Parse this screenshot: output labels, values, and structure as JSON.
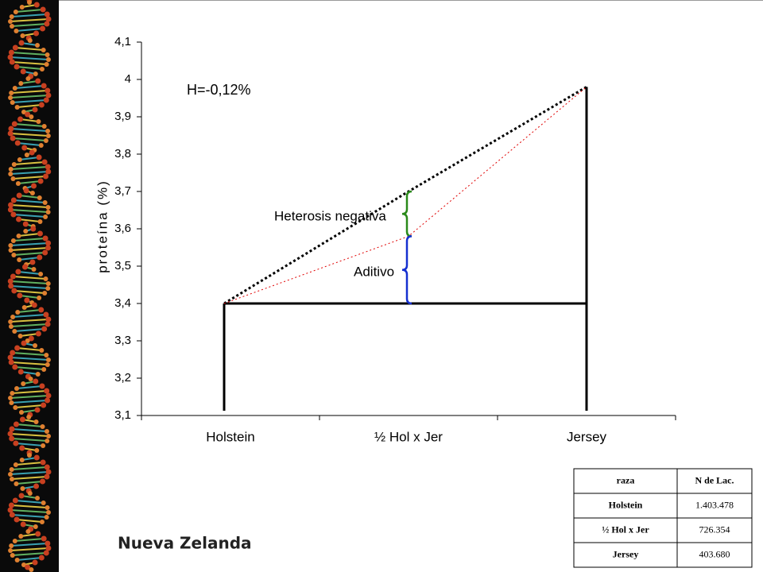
{
  "chart_data": {
    "type": "line",
    "categories": [
      "Holstein",
      "½ Hol x Jer",
      "Jersey"
    ],
    "series": [
      {
        "color": "#000000",
        "values": [
          3.4,
          3.7,
          3.98
        ],
        "style": "dotted"
      },
      {
        "color": "#e00000",
        "values": [
          3.4,
          3.58,
          3.98
        ],
        "style": "dotted-thin"
      }
    ],
    "ylim": [
      3.1,
      4.1
    ],
    "yticks": [
      {
        "value": 3.1,
        "label": "3,1"
      },
      {
        "value": 3.2,
        "label": "3,2"
      },
      {
        "value": 3.3,
        "label": "3,3"
      },
      {
        "value": 3.4,
        "label": "3,4"
      },
      {
        "value": 3.5,
        "label": "3,5"
      },
      {
        "value": 3.6,
        "label": "3,6"
      },
      {
        "value": 3.7,
        "label": "3,7"
      },
      {
        "value": 3.8,
        "label": "3,8"
      },
      {
        "value": 3.9,
        "label": "3,9"
      },
      {
        "value": 4,
        "label": "4"
      },
      {
        "value": 4.1,
        "label": "4,1"
      }
    ],
    "y_label": "proteína (%)",
    "annotations": [
      "H=-0,12%",
      "Heterosis negativa",
      "Aditivo"
    ]
  },
  "caption": "Nueva Zelanda",
  "table": {
    "header": [
      "raza",
      "N de Lac."
    ],
    "rows": [
      [
        "Holstein",
        "1.403.478"
      ],
      [
        "½ Hol x Jer",
        "726.354"
      ],
      [
        "Jersey",
        "403.680"
      ]
    ]
  }
}
